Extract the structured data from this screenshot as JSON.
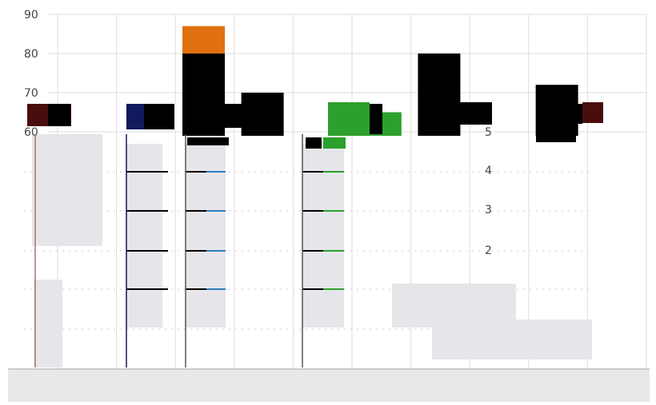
{
  "chart_data": {
    "type": "bar",
    "grid": true,
    "ylim": [
      0,
      90
    ],
    "y_ticks": [
      "90",
      "80",
      "70",
      "60"
    ],
    "right_ticks": [
      "5",
      "4",
      "3",
      "2"
    ],
    "categories": [
      "",
      "",
      "",
      "",
      "",
      "",
      "",
      "",
      "",
      ""
    ],
    "colors": {
      "orange": "#e07010",
      "blue": "#2a7fc0",
      "green": "#2ca02c",
      "dark": "#000000",
      "maroon": "#4a0d0d",
      "navy": "#101a5c",
      "grid": "#dddddd",
      "band": "#e6e6ea",
      "floor": "#e8e8e8"
    },
    "bars": [
      {
        "category_index": 2,
        "value": 87,
        "color": "orange"
      },
      {
        "category_index": 2,
        "value": 80,
        "color": "dark"
      },
      {
        "category_index": 6,
        "value": 80,
        "color": "dark"
      },
      {
        "category_index": 8,
        "value": 72,
        "color": "dark"
      },
      {
        "category_index": 5,
        "value": 65,
        "color": "green"
      },
      {
        "category_index": 3,
        "value": 70,
        "color": "dark"
      }
    ]
  }
}
